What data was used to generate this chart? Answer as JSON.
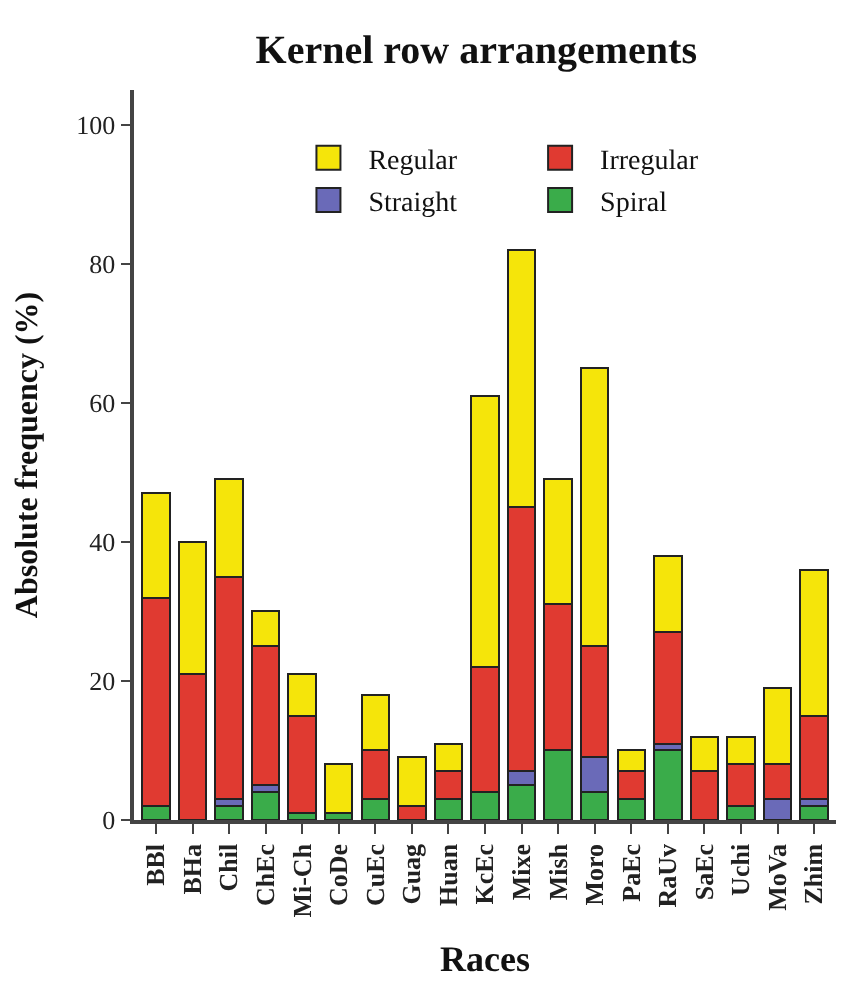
{
  "chart_data": {
    "type": "bar",
    "stacked": true,
    "title": "Kernel row arrangements",
    "xlabel": "Races",
    "ylabel": "Absolute frequency (%)",
    "categories": [
      "BBl",
      "BHa",
      "Chil",
      "ChEc",
      "Mi-Ch",
      "CoDe",
      "CuEc",
      "Guag",
      "Huan",
      "KcEc",
      "Mixe",
      "Mish",
      "Moro",
      "PaEc",
      "RaUv",
      "SaEc",
      "Uchi",
      "MoVa",
      "Zhim"
    ],
    "series": [
      {
        "name": "Spiral",
        "color": "#3aac4a",
        "values": [
          2,
          0,
          2,
          4,
          1,
          1,
          3,
          0,
          3,
          4,
          5,
          10,
          4,
          3,
          10,
          0,
          2,
          0,
          2
        ]
      },
      {
        "name": "Straight",
        "color": "#6a6ab8",
        "values": [
          0,
          0,
          1,
          1,
          0,
          0,
          0,
          0,
          0,
          0,
          2,
          0,
          5,
          0,
          1,
          0,
          0,
          3,
          1
        ]
      },
      {
        "name": "Irregular",
        "color": "#e03a31",
        "values": [
          30,
          21,
          32,
          20,
          14,
          0,
          7,
          2,
          4,
          18,
          38,
          21,
          16,
          4,
          16,
          7,
          6,
          5,
          12
        ]
      },
      {
        "name": "Regular",
        "color": "#f5e50a",
        "values": [
          15,
          19,
          14,
          5,
          6,
          7,
          8,
          7,
          4,
          39,
          37,
          18,
          40,
          3,
          11,
          5,
          4,
          11,
          21
        ]
      }
    ],
    "ylim": [
      0,
      105
    ],
    "yticks": [
      0,
      20,
      40,
      60,
      80,
      100
    ],
    "legend": "top"
  }
}
